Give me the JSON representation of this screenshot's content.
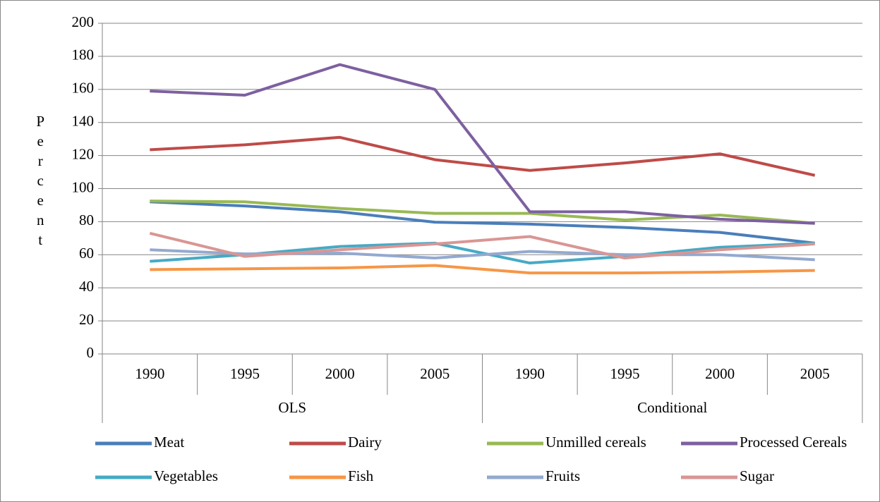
{
  "chart_data": {
    "type": "line",
    "y_label": "Percent",
    "category_groups": [
      {
        "name": "OLS",
        "categories": [
          "1990",
          "1995",
          "2000",
          "2005"
        ]
      },
      {
        "name": "Conditional",
        "categories": [
          "1990",
          "1995",
          "2000",
          "2005"
        ]
      }
    ],
    "series": [
      {
        "name": "Meat",
        "color": "#4a7ebb",
        "values": [
          92,
          89.5,
          86,
          79.7,
          78.5,
          76.5,
          73.5,
          67
        ]
      },
      {
        "name": "Dairy",
        "color": "#be4b48",
        "values": [
          123.5,
          126.5,
          131,
          117.5,
          111,
          115.5,
          121,
          108
        ]
      },
      {
        "name": "Unmilled cereals",
        "color": "#98b954",
        "values": [
          92.5,
          92,
          88,
          85,
          85,
          81,
          84,
          79
        ]
      },
      {
        "name": "Processed Cereals",
        "color": "#7d60a0",
        "values": [
          159,
          156.5,
          175,
          160,
          86,
          86,
          81.5,
          79
        ]
      },
      {
        "name": "Vegetables",
        "color": "#46aac5",
        "values": [
          56,
          60,
          65,
          67,
          55,
          59,
          64.5,
          67
        ]
      },
      {
        "name": "Fish",
        "color": "#f79646",
        "values": [
          51,
          51.5,
          52,
          53.5,
          49,
          49,
          49.5,
          50.5
        ]
      },
      {
        "name": "Fruits",
        "color": "#93a9cf",
        "values": [
          63,
          60.5,
          61,
          58,
          62,
          60,
          60,
          57
        ]
      },
      {
        "name": "Sugar",
        "color": "#d99694",
        "values": [
          73,
          59,
          63,
          66.5,
          71,
          58,
          63,
          66.5
        ]
      }
    ],
    "ylim": [
      0,
      200
    ],
    "yticks": [
      0,
      20,
      40,
      60,
      80,
      100,
      120,
      140,
      160,
      180,
      200
    ],
    "grid": true
  }
}
